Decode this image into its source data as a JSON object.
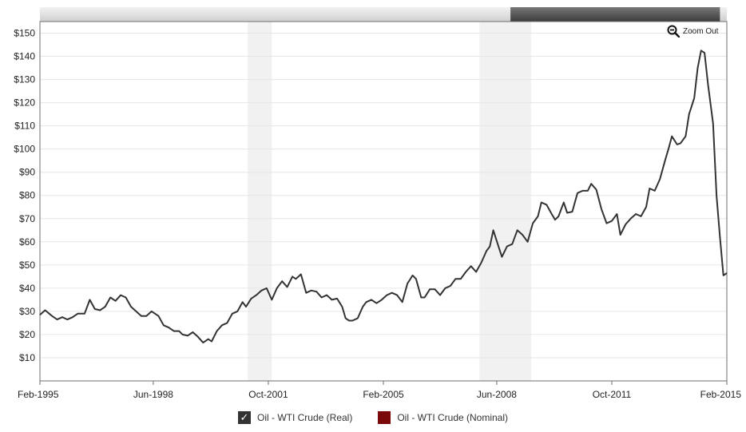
{
  "ui": {
    "zoom_out_label": "Zoom Out",
    "legend": [
      {
        "label": "Oil - WTI Crude (Real)",
        "color": "#333333",
        "checked": true
      },
      {
        "label": "Oil - WTI Crude (Nominal)",
        "color": "#7a0a0a",
        "checked": false
      }
    ]
  },
  "chart_data": {
    "type": "line",
    "title": "",
    "xlabel": "",
    "ylabel": "",
    "x_range": [
      1995.1,
      2015.1
    ],
    "ylim": [
      0,
      155
    ],
    "y_ticks": [
      10,
      20,
      30,
      40,
      50,
      60,
      70,
      80,
      90,
      100,
      110,
      120,
      130,
      140,
      150
    ],
    "y_tick_labels": [
      "$10",
      "$20",
      "$30",
      "$40",
      "$50",
      "$60",
      "$70",
      "$80",
      "$90",
      "$100",
      "$110",
      "$120",
      "$130",
      "$140",
      "$150"
    ],
    "x_ticks": [
      {
        "x": 1995.1,
        "label": "Feb-1995"
      },
      {
        "x": 1998.4,
        "label": "Jun-1998"
      },
      {
        "x": 2001.75,
        "label": "Oct-2001"
      },
      {
        "x": 2005.1,
        "label": "Feb-2005"
      },
      {
        "x": 2008.4,
        "label": "Jun-2008"
      },
      {
        "x": 2011.75,
        "label": "Oct-2011"
      },
      {
        "x": 2015.1,
        "label": "Feb-2015"
      }
    ],
    "grid": true,
    "legend_position": "bottom",
    "recessions": [
      [
        2001.15,
        2001.85
      ],
      [
        2007.9,
        2009.4
      ]
    ],
    "navigator_window": [
      2008.8,
      2014.9
    ],
    "series": [
      {
        "name": "Oil - WTI Crude (Real)",
        "color": "#333333",
        "points": [
          [
            1995.1,
            28.5
          ],
          [
            1995.25,
            30.5
          ],
          [
            1995.45,
            28.0
          ],
          [
            1995.6,
            26.5
          ],
          [
            1995.75,
            27.5
          ],
          [
            1995.9,
            26.5
          ],
          [
            1996.05,
            27.5
          ],
          [
            1996.2,
            29.0
          ],
          [
            1996.4,
            29.0
          ],
          [
            1996.55,
            35.0
          ],
          [
            1996.7,
            31.0
          ],
          [
            1996.85,
            30.5
          ],
          [
            1997.0,
            32.0
          ],
          [
            1997.15,
            36.0
          ],
          [
            1997.3,
            34.5
          ],
          [
            1997.45,
            37.0
          ],
          [
            1997.6,
            36.0
          ],
          [
            1997.75,
            32.0
          ],
          [
            1997.9,
            30.0
          ],
          [
            1998.05,
            28.0
          ],
          [
            1998.2,
            28.0
          ],
          [
            1998.35,
            30.0
          ],
          [
            1998.55,
            28.0
          ],
          [
            1998.7,
            24.0
          ],
          [
            1998.85,
            23.0
          ],
          [
            1999.0,
            21.5
          ],
          [
            1999.15,
            21.5
          ],
          [
            1999.25,
            20.0
          ],
          [
            1999.4,
            19.5
          ],
          [
            1999.55,
            21.0
          ],
          [
            1999.7,
            19.0
          ],
          [
            1999.85,
            16.5
          ],
          [
            2000.0,
            18.0
          ],
          [
            2000.1,
            17.0
          ],
          [
            2000.25,
            21.5
          ],
          [
            2000.4,
            24.0
          ],
          [
            2000.55,
            25.0
          ],
          [
            2000.7,
            29.0
          ],
          [
            2000.85,
            30.0
          ],
          [
            2001.0,
            34.0
          ],
          [
            2001.1,
            32.0
          ],
          [
            2001.25,
            35.5
          ],
          [
            2001.4,
            37.0
          ],
          [
            2001.55,
            39.0
          ],
          [
            2001.7,
            40.0
          ],
          [
            2001.85,
            35.0
          ],
          [
            2002.0,
            40.0
          ],
          [
            2002.15,
            43.0
          ],
          [
            2002.3,
            40.5
          ],
          [
            2002.45,
            45.0
          ],
          [
            2002.55,
            44.0
          ],
          [
            2002.7,
            46.0
          ],
          [
            2002.85,
            38.0
          ],
          [
            2003.0,
            39.0
          ],
          [
            2003.15,
            38.5
          ],
          [
            2003.3,
            36.0
          ],
          [
            2003.45,
            37.0
          ],
          [
            2003.6,
            35.0
          ],
          [
            2003.75,
            35.5
          ],
          [
            2003.9,
            32.0
          ],
          [
            2004.0,
            27.0
          ],
          [
            2004.1,
            26.0
          ],
          [
            2004.2,
            26.0
          ],
          [
            2004.35,
            27.0
          ],
          [
            2004.5,
            32.0
          ],
          [
            2004.6,
            34.0
          ],
          [
            2004.75,
            35.0
          ],
          [
            2004.9,
            33.5
          ],
          [
            2005.05,
            35.0
          ],
          [
            2005.2,
            37.0
          ],
          [
            2005.35,
            38.0
          ],
          [
            2005.5,
            37.0
          ],
          [
            2005.65,
            34.0
          ],
          [
            2005.8,
            42.0
          ],
          [
            2005.95,
            45.5
          ],
          [
            2006.05,
            44.0
          ],
          [
            2006.2,
            36.0
          ],
          [
            2006.3,
            36.0
          ],
          [
            2006.45,
            39.5
          ],
          [
            2006.6,
            39.5
          ],
          [
            2006.75,
            37.0
          ],
          [
            2006.9,
            40.0
          ],
          [
            2007.05,
            41.0
          ],
          [
            2007.2,
            44.0
          ],
          [
            2007.35,
            44.0
          ],
          [
            2007.5,
            47.0
          ],
          [
            2007.65,
            49.5
          ],
          [
            2007.8,
            47.0
          ],
          [
            2007.95,
            51.0
          ],
          [
            2008.1,
            56.0
          ],
          [
            2008.2,
            58.0
          ],
          [
            2008.3,
            65.0
          ],
          [
            2008.45,
            58.0
          ],
          [
            2008.55,
            53.5
          ],
          [
            2008.7,
            58.0
          ],
          [
            2008.85,
            59.0
          ],
          [
            2009.0,
            65.0
          ],
          [
            2009.15,
            63.0
          ],
          [
            2009.3,
            60.0
          ],
          [
            2009.45,
            68.0
          ],
          [
            2009.6,
            71.0
          ],
          [
            2009.7,
            77.0
          ],
          [
            2009.85,
            76.0
          ],
          [
            2010.0,
            72.0
          ],
          [
            2010.1,
            69.5
          ],
          [
            2010.2,
            71.0
          ],
          [
            2010.35,
            77.0
          ],
          [
            2010.45,
            72.5
          ],
          [
            2010.6,
            73.0
          ],
          [
            2010.75,
            81.0
          ],
          [
            2010.9,
            82.0
          ],
          [
            2011.05,
            82.0
          ],
          [
            2011.15,
            85.0
          ],
          [
            2011.3,
            82.5
          ],
          [
            2011.45,
            74.0
          ],
          [
            2011.6,
            68.0
          ],
          [
            2011.75,
            69.0
          ],
          [
            2011.9,
            72.0
          ],
          [
            2012.0,
            63.0
          ],
          [
            2012.15,
            67.5
          ],
          [
            2012.3,
            70.0
          ],
          [
            2012.45,
            72.0
          ],
          [
            2012.6,
            71.0
          ],
          [
            2012.75,
            75.0
          ],
          [
            2012.85,
            83.0
          ],
          [
            2013.0,
            82.0
          ],
          [
            2013.15,
            87.0
          ],
          [
            2013.3,
            95.0
          ],
          [
            2013.4,
            100.0
          ],
          [
            2013.5,
            105.5
          ],
          [
            2013.65,
            102.0
          ],
          [
            2013.75,
            102.5
          ],
          [
            2013.9,
            105.5
          ],
          [
            2014.0,
            115.0
          ],
          [
            2014.15,
            122.0
          ],
          [
            2014.25,
            135.0
          ],
          [
            2014.35,
            142.5
          ],
          [
            2014.45,
            141.5
          ],
          [
            2014.55,
            128.0
          ],
          [
            2014.7,
            111.0
          ],
          [
            2014.8,
            80.0
          ],
          [
            2014.9,
            62.0
          ],
          [
            2015.0,
            45.5
          ],
          [
            2015.1,
            46.5
          ]
        ]
      }
    ]
  }
}
